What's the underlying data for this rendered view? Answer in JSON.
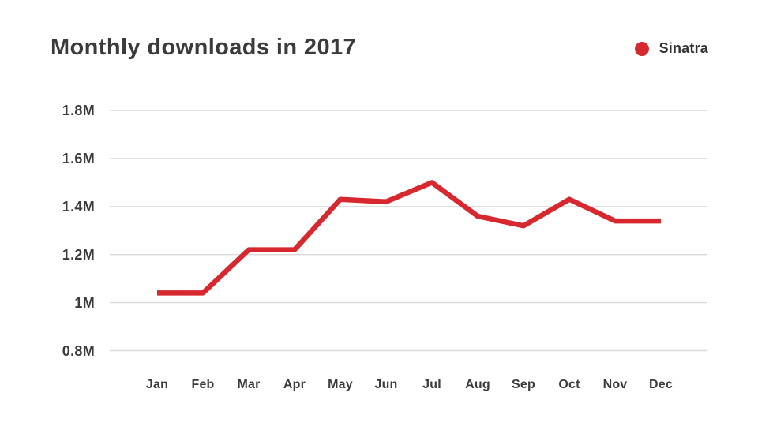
{
  "header": {
    "title": "Monthly downloads in 2017"
  },
  "legend": {
    "label": "Sinatra",
    "color": "#d7282f",
    "position": "top-right"
  },
  "colors": {
    "background": "#ffffff",
    "text": "#3b3b3b",
    "gridline": "#d9d9d9",
    "series_red": "#d7282f"
  },
  "chart_data": {
    "type": "line",
    "title": "Monthly downloads in 2017",
    "categories": [
      "Jan",
      "Feb",
      "Mar",
      "Apr",
      "May",
      "Jun",
      "Jul",
      "Aug",
      "Sep",
      "Oct",
      "Nov",
      "Dec"
    ],
    "series": [
      {
        "name": "Sinatra",
        "color": "#d7282f",
        "unit": "M downloads",
        "values": [
          1.04,
          1.04,
          1.22,
          1.22,
          1.43,
          1.42,
          1.5,
          1.36,
          1.32,
          1.43,
          1.34,
          1.34
        ]
      }
    ],
    "xlabel": "",
    "ylabel": "",
    "ylim": [
      0.8,
      1.8
    ],
    "y_ticks": [
      {
        "value": 1.8,
        "label": "1.8M"
      },
      {
        "value": 1.6,
        "label": "1.6M"
      },
      {
        "value": 1.4,
        "label": "1.4M"
      },
      {
        "value": 1.2,
        "label": "1.2M"
      },
      {
        "value": 1.0,
        "label": "1M"
      },
      {
        "value": 0.8,
        "label": "0.8M"
      }
    ],
    "grid": true,
    "legend_position": "top-right"
  }
}
